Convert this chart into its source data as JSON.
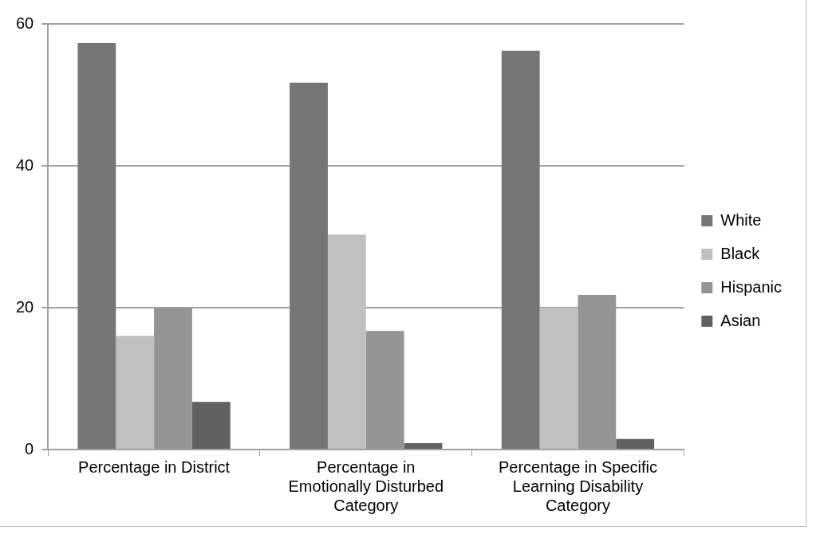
{
  "chart_data": {
    "type": "bar",
    "categories": [
      "Percentage in District",
      "Percentage in Emotionally Disturbed Category",
      "Percentage in Specific Learning Disability Category"
    ],
    "series": [
      {
        "name": "White",
        "color": "#767676",
        "values": [
          57.3,
          51.7,
          56.2
        ]
      },
      {
        "name": "Black",
        "color": "#c0c0c0",
        "values": [
          16.0,
          30.3,
          20.0
        ]
      },
      {
        "name": "Hispanic",
        "color": "#949494",
        "values": [
          20.0,
          16.7,
          21.8
        ]
      },
      {
        "name": "Asian",
        "color": "#616161",
        "values": [
          6.7,
          0.9,
          1.5
        ]
      }
    ],
    "ylim": [
      0,
      60
    ],
    "yticks": [
      0,
      20,
      40,
      60
    ],
    "grid": "y",
    "legend": "right"
  }
}
